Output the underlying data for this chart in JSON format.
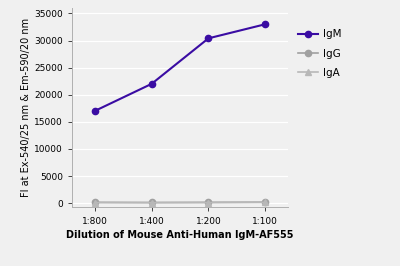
{
  "x_labels": [
    "1:800",
    "1:400",
    "1:200",
    "1:100"
  ],
  "x_values": [
    1,
    2,
    3,
    4
  ],
  "IgM_values": [
    17000,
    22000,
    30400,
    33000
  ],
  "IgG_values": [
    150,
    120,
    150,
    180
  ],
  "IgA_values": [
    100,
    80,
    100,
    130
  ],
  "IgM_color": "#3a0ca3",
  "IgG_color": "#a0a0a0",
  "IgA_color": "#b8b8b8",
  "ylabel": "FI at Ex-540/25 nm & Em-590/20 nm",
  "xlabel": "Dilution of Mouse Anti-Human IgM-AF555",
  "ylim": [
    -800,
    36000
  ],
  "yticks": [
    0,
    5000,
    10000,
    15000,
    20000,
    25000,
    30000,
    35000
  ],
  "axis_fontsize": 7,
  "tick_fontsize": 6.5,
  "legend_fontsize": 7.5,
  "background_color": "#f0f0f0",
  "plot_bg_color": "#f0f0f0",
  "grid_color": "#ffffff"
}
